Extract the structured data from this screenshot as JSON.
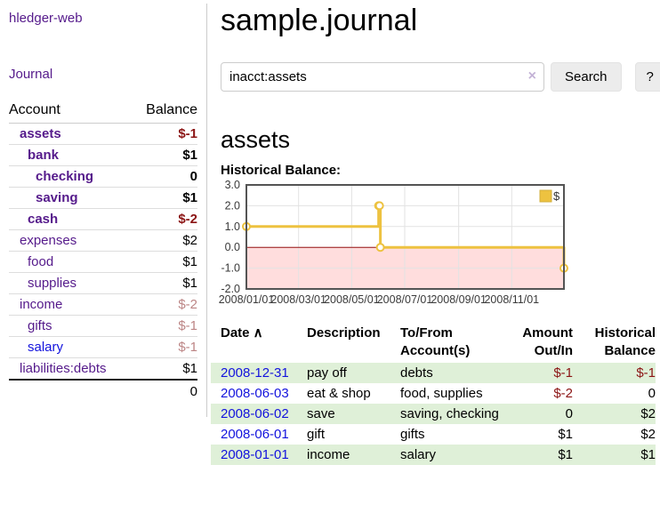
{
  "app": {
    "title": "hledger-web"
  },
  "sidebar": {
    "journal_label": "Journal",
    "accounts_table": {
      "headers": [
        "Account",
        "Balance"
      ],
      "rows": [
        {
          "account": "assets",
          "balance": "$-1",
          "depth": 1,
          "bold": true,
          "balance_style": "negative-strong"
        },
        {
          "account": "bank",
          "balance": "$1",
          "depth": 2,
          "bold": true,
          "balance_style": "normal"
        },
        {
          "account": "checking",
          "balance": "0",
          "depth": 3,
          "bold": true,
          "balance_style": "normal"
        },
        {
          "account": "saving",
          "balance": "$1",
          "depth": 3,
          "bold": true,
          "balance_style": "normal"
        },
        {
          "account": "cash",
          "balance": "$-2",
          "depth": 2,
          "bold": true,
          "balance_style": "negative-strong"
        },
        {
          "account": "expenses",
          "balance": "$2",
          "depth": 1,
          "bold": false,
          "balance_style": "normal"
        },
        {
          "account": "food",
          "balance": "$1",
          "depth": 2,
          "bold": false,
          "balance_style": "normal"
        },
        {
          "account": "supplies",
          "balance": "$1",
          "depth": 2,
          "bold": false,
          "balance_style": "normal"
        },
        {
          "account": "income",
          "balance": "$-2",
          "depth": 1,
          "bold": false,
          "balance_style": "negative-faded"
        },
        {
          "account": "gifts",
          "balance": "$-1",
          "depth": 2,
          "bold": false,
          "balance_style": "negative-faded"
        },
        {
          "account": "salary",
          "balance": "$-1",
          "depth": 2,
          "bold": false,
          "balance_style": "negative-faded",
          "link_style": "unvisited"
        },
        {
          "account": "liabilities:debts",
          "balance": "$1",
          "depth": 1,
          "bold": false,
          "balance_style": "normal"
        }
      ],
      "total": "0"
    }
  },
  "main": {
    "title": "sample.journal",
    "search": {
      "value": "inacct:assets",
      "clear_icon": "×",
      "button_label": "Search",
      "help_label": "?"
    },
    "account_heading": "assets",
    "chart_label": "Historical Balance:"
  },
  "chart_data": {
    "type": "line",
    "title": "Historical Balance",
    "step": true,
    "series": [
      {
        "name": "$",
        "color": "#edc240",
        "points": [
          {
            "date": "2008-01-01",
            "value": 1
          },
          {
            "date": "2008-06-01",
            "value": 2
          },
          {
            "date": "2008-06-02",
            "value": 2
          },
          {
            "date": "2008-06-03",
            "value": 0
          },
          {
            "date": "2008-12-31",
            "value": -1
          }
        ]
      }
    ],
    "x_range": [
      "2008-01-01",
      "2008-12-31"
    ],
    "x_ticks": [
      {
        "date": "2008-01-01",
        "label": "2008/01/01"
      },
      {
        "date": "2008-03-01",
        "label": "2008/03/01"
      },
      {
        "date": "2008-05-01",
        "label": "2008/05/01"
      },
      {
        "date": "2008-07-01",
        "label": "2008/07/01"
      },
      {
        "date": "2008-09-01",
        "label": "2008/09/01"
      },
      {
        "date": "2008-11-01",
        "label": "2008/11/01"
      }
    ],
    "y_ticks": [
      "3.0",
      "2.0",
      "1.0",
      "0.0",
      "-1.0",
      "-2.0"
    ],
    "ylim": [
      -2,
      3
    ],
    "grid": true,
    "legend": {
      "label": "$",
      "position": "top-right"
    },
    "colors": {
      "line": "#edc240",
      "marker_fill": "#ffffff",
      "negative_region": "#ffdddd",
      "zero_line": "#991111",
      "grid": "#e2e2e2",
      "border": "#545454",
      "tick_text": "#3a3a3a"
    }
  },
  "register": {
    "sort_icon": "∧",
    "headers": [
      {
        "lines": [
          "Date"
        ],
        "align": "left",
        "sorted": true
      },
      {
        "lines": [
          "Description"
        ],
        "align": "left"
      },
      {
        "lines": [
          "To/From",
          "Account(s)"
        ],
        "align": "left"
      },
      {
        "lines": [
          "Amount",
          "Out/In"
        ],
        "align": "right"
      },
      {
        "lines": [
          "Historical",
          "Balance"
        ],
        "align": "right"
      }
    ],
    "row_stripe_color": "#dff0d8",
    "rows": [
      {
        "date": "2008-12-31",
        "description": "pay off",
        "accounts": "debts",
        "amount": "$-1",
        "amount_style": "negative",
        "balance": "$-1",
        "balance_style": "negative"
      },
      {
        "date": "2008-06-03",
        "description": "eat & shop",
        "accounts": "food, supplies",
        "amount": "$-2",
        "amount_style": "negative",
        "balance": "0",
        "balance_style": "normal"
      },
      {
        "date": "2008-06-02",
        "description": "save",
        "accounts": "saving, checking",
        "amount": "0",
        "amount_style": "normal",
        "balance": "$2",
        "balance_style": "normal"
      },
      {
        "date": "2008-06-01",
        "description": "gift",
        "accounts": "gifts",
        "amount": "$1",
        "amount_style": "normal",
        "balance": "$2",
        "balance_style": "normal"
      },
      {
        "date": "2008-01-01",
        "description": "income",
        "accounts": "salary",
        "amount": "$1",
        "amount_style": "normal",
        "balance": "$1",
        "balance_style": "normal"
      }
    ]
  }
}
